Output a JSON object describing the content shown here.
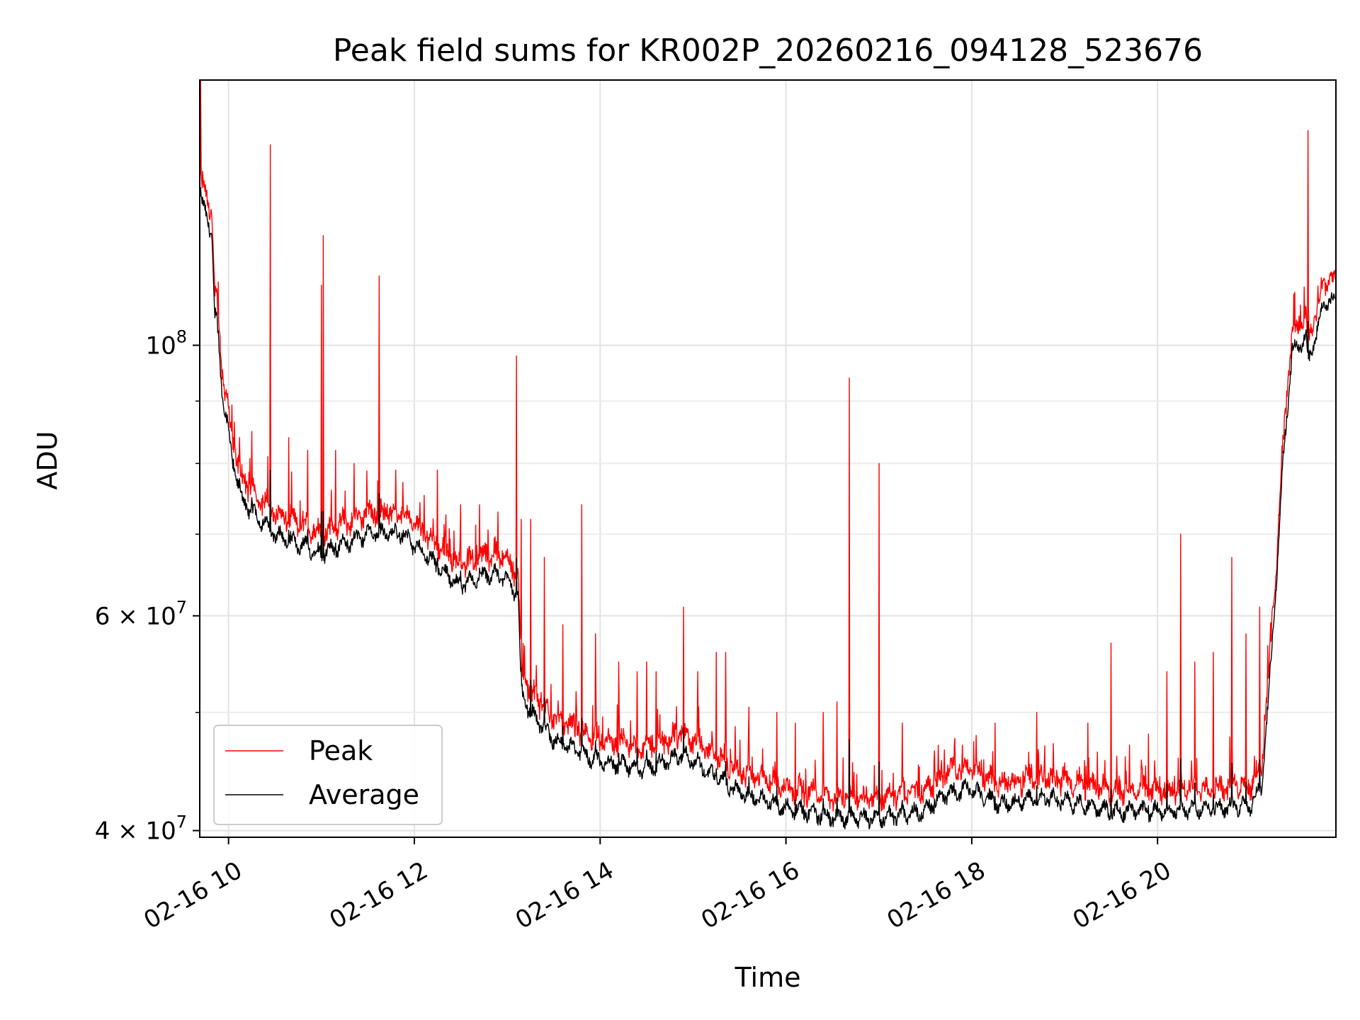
{
  "chart_data": {
    "type": "line",
    "title": "Peak field sums for KR002P_20260216_094128_523676",
    "xlabel": "Time",
    "ylabel": "ADU",
    "yscale": "log",
    "xlim_hours": [
      9.69,
      21.92
    ],
    "ylim": [
      39500000,
      165000000
    ],
    "grid": true,
    "x_ticks": [
      {
        "hour": 10,
        "label": "02-16 10"
      },
      {
        "hour": 12,
        "label": "02-16 12"
      },
      {
        "hour": 14,
        "label": "02-16 14"
      },
      {
        "hour": 16,
        "label": "02-16 16"
      },
      {
        "hour": 18,
        "label": "02-16 18"
      },
      {
        "hour": 20,
        "label": "02-16 20"
      }
    ],
    "y_major_ticks": [
      {
        "value": 40000000,
        "mantissa": "4",
        "exponent": "7"
      },
      {
        "value": 60000000,
        "mantissa": "6",
        "exponent": "7"
      },
      {
        "value": 100000000,
        "mantissa": "",
        "exponent": "8"
      }
    ],
    "y_minor_ticks": [
      50000000,
      70000000,
      80000000,
      90000000
    ],
    "legend": {
      "position": "lower-left",
      "entries": [
        {
          "label": "Peak",
          "color": "#ff0000"
        },
        {
          "label": "Average",
          "color": "#000000"
        }
      ]
    },
    "series": [
      {
        "name": "Average",
        "color": "#000000",
        "baseline_hours": [
          9.69,
          9.72,
          9.82,
          9.85,
          9.87,
          9.93,
          10.05,
          10.15,
          10.3,
          10.5,
          10.8,
          11.0,
          11.1,
          11.5,
          11.85,
          12.2,
          12.5,
          12.8,
          13.0,
          13.12,
          13.15,
          13.25,
          13.5,
          14.0,
          14.5,
          14.9,
          15.1,
          15.5,
          16.0,
          16.5,
          17.0,
          17.5,
          17.7,
          18.0,
          18.3,
          18.8,
          19.5,
          20.0,
          20.5,
          21.0,
          21.12,
          21.2,
          21.3,
          21.35,
          21.45,
          21.5,
          21.6,
          21.62,
          21.7,
          21.74,
          21.78,
          21.84,
          21.92
        ],
        "baseline_values": [
          132000000,
          130000000,
          124000000,
          105000000,
          106000000,
          92000000,
          80000000,
          74500000,
          72500000,
          70000000,
          68500000,
          67500000,
          68000000,
          70000000,
          70200000,
          66500000,
          63500000,
          65000000,
          64500000,
          62000000,
          52000000,
          50000000,
          47500000,
          45500000,
          45000000,
          46200000,
          45000000,
          43000000,
          41800000,
          41000000,
          41000000,
          41500000,
          42800000,
          43300000,
          42000000,
          42600000,
          41500000,
          41500000,
          41700000,
          42000000,
          43500000,
          52000000,
          68000000,
          80000000,
          99000000,
          99500000,
          102000000,
          96500000,
          102000000,
          104000000,
          108000000,
          109000000,
          108500000
        ],
        "noise_amplitude": 0.022
      },
      {
        "name": "Peak",
        "color": "#ff0000",
        "offset_ratio": 1.025,
        "spikes_hours": [
          9.7,
          10.05,
          10.12,
          10.25,
          10.45,
          10.65,
          10.85,
          11.0,
          11.02,
          11.15,
          11.35,
          11.62,
          11.8,
          12.25,
          12.5,
          12.7,
          12.9,
          13.1,
          13.15,
          13.25,
          13.4,
          13.6,
          13.8,
          13.95,
          14.2,
          14.4,
          14.5,
          14.6,
          14.9,
          15.05,
          15.25,
          15.35,
          15.6,
          15.9,
          16.1,
          16.4,
          16.55,
          16.68,
          17.0,
          17.25,
          17.6,
          17.9,
          18.25,
          18.7,
          19.25,
          19.5,
          19.7,
          19.9,
          20.1,
          20.25,
          20.4,
          20.6,
          20.8,
          20.95,
          21.1,
          21.62
        ],
        "spikes_values": [
          165000000,
          84000000,
          84000000,
          85000000,
          146000000,
          84000000,
          82000000,
          112000000,
          123000000,
          82000000,
          80000000,
          114000000,
          79000000,
          79000000,
          74000000,
          74000000,
          73000000,
          98000000,
          72000000,
          72000000,
          67000000,
          59000000,
          74000000,
          58000000,
          55000000,
          54000000,
          55000000,
          54000000,
          61000000,
          54000000,
          56000000,
          56000000,
          50500000,
          50000000,
          49000000,
          50000000,
          51000000,
          94000000,
          80000000,
          49000000,
          46500000,
          47000000,
          49000000,
          50000000,
          49000000,
          57000000,
          47000000,
          48000000,
          54000000,
          70000000,
          55000000,
          56000000,
          67000000,
          58000000,
          61000000,
          150000000
        ]
      }
    ]
  }
}
